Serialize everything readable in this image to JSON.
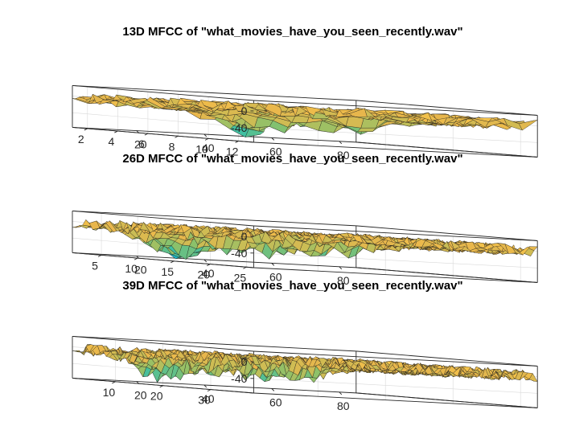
{
  "colormap": [
    "#3e26a8",
    "#1e7fe0",
    "#12b0d6",
    "#3fbfa3",
    "#8cc16a",
    "#c9bd55",
    "#e8b64c",
    "#f6c54a",
    "#f9d83a"
  ],
  "chart_data": [
    {
      "type": "surface",
      "title": "13D MFCC of \"what_movies_have_you_seen_recently.wav\"",
      "frames": 85,
      "coefficients": 13,
      "x_ticks": [
        20,
        40,
        60,
        80
      ],
      "x_tick_labels": [
        "20",
        "40",
        "60",
        "80"
      ],
      "y_ticks": [
        2,
        4,
        6,
        8,
        10,
        12
      ],
      "y_tick_labels": [
        "2",
        "4",
        "6",
        "8",
        "10",
        "12"
      ],
      "z_ticks": [
        0,
        -40
      ],
      "z_tick_labels": [
        "0",
        "-40"
      ],
      "xlim": [
        1,
        85
      ],
      "ylim": [
        1,
        13
      ],
      "zlim": [
        -75,
        25
      ],
      "xlabel": "",
      "ylabel": "",
      "zlabel": "",
      "dips": [
        [
          3,
          12,
          -55
        ],
        [
          7,
          12,
          -45
        ],
        [
          12,
          12,
          -40
        ],
        [
          37,
          6,
          -50
        ],
        [
          56,
          5,
          -45
        ],
        [
          64,
          6,
          -35
        ],
        [
          72,
          4,
          -30
        ]
      ]
    },
    {
      "type": "surface",
      "title": "26D MFCC of \"what_movies_have_you_seen_recently.wav\"",
      "frames": 85,
      "coefficients": 26,
      "x_ticks": [
        20,
        40,
        60,
        80
      ],
      "x_tick_labels": [
        "20",
        "40",
        "60",
        "80"
      ],
      "y_ticks": [
        5,
        10,
        15,
        20,
        25
      ],
      "y_tick_labels": [
        "5",
        "10",
        "15",
        "20",
        "25"
      ],
      "z_ticks": [
        0,
        -40
      ],
      "z_tick_labels": [
        "0",
        "-40"
      ],
      "xlim": [
        1,
        85
      ],
      "ylim": [
        1,
        26
      ],
      "zlim": [
        -75,
        25
      ],
      "xlabel": "",
      "ylabel": "",
      "zlabel": "",
      "dips": [
        [
          8,
          12,
          -60
        ],
        [
          11,
          12,
          -55
        ],
        [
          36,
          6,
          -45
        ],
        [
          55,
          4,
          -50
        ],
        [
          63,
          5,
          -40
        ],
        [
          72,
          7,
          -35
        ]
      ]
    },
    {
      "type": "surface",
      "title": "39D MFCC of \"what_movies_have_you_seen_recently.wav\"",
      "frames": 85,
      "coefficients": 39,
      "x_ticks": [
        20,
        40,
        60,
        80
      ],
      "x_tick_labels": [
        "20",
        "40",
        "60",
        "80"
      ],
      "y_ticks": [
        10,
        20,
        30
      ],
      "y_tick_labels": [
        "10",
        "20",
        "30"
      ],
      "z_ticks": [
        0,
        -40
      ],
      "z_tick_labels": [
        "0",
        "-40"
      ],
      "xlim": [
        1,
        85
      ],
      "ylim": [
        1,
        39
      ],
      "zlim": [
        -75,
        25
      ],
      "xlabel": "",
      "ylabel": "",
      "zlabel": "",
      "dips": [
        [
          12,
          12,
          -55
        ],
        [
          16,
          12,
          -45
        ],
        [
          36,
          6,
          -45
        ],
        [
          48,
          5,
          -45
        ],
        [
          57,
          6,
          -40
        ],
        [
          64,
          5,
          -40
        ]
      ]
    }
  ]
}
